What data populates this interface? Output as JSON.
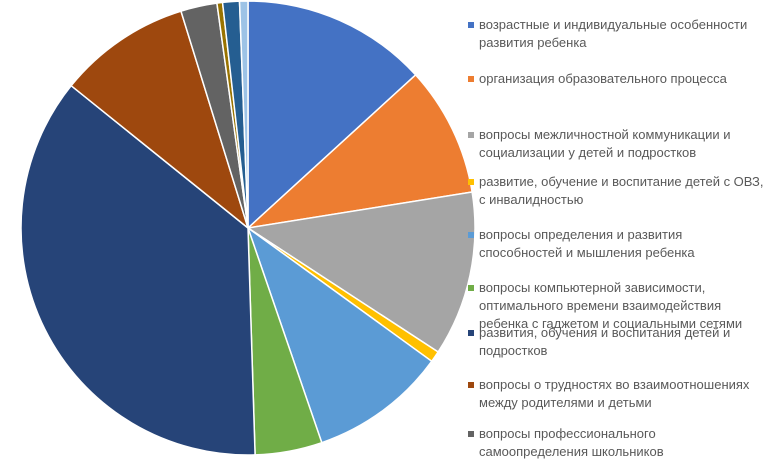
{
  "chart_data": {
    "type": "pie",
    "title": "",
    "start_angle_deg": 0,
    "direction": "clockwise",
    "slices": [
      {
        "label": "возрастные и индивидуальные особенности развития ребенка",
        "value": 13.3,
        "color": "#4472c4",
        "in_legend": true
      },
      {
        "label": "организация образовательного процесса",
        "value": 9.3,
        "color": "#ed7d31",
        "in_legend": true
      },
      {
        "label": "вопросы межличностной коммуникации и социализации у детей и подростков",
        "value": 11.8,
        "color": "#a5a5a5",
        "in_legend": true
      },
      {
        "label": "развитие, обучение и воспитание детей с ОВЗ, с инвалидностью",
        "value": 0.8,
        "color": "#ffc000",
        "in_legend": true
      },
      {
        "label": "вопросы определения и развития способностей и мышления ребенка",
        "value": 9.8,
        "color": "#5b9bd5",
        "in_legend": true
      },
      {
        "label": "вопросы компьютерной зависимости, оптимального времени взаимодействия ребенка с гаджетом и социальными сетями",
        "value": 4.8,
        "color": "#70ad47",
        "in_legend": true
      },
      {
        "label": "развития, обучения и воспитания детей и подростков",
        "value": 36.5,
        "color": "#264478",
        "in_legend": true
      },
      {
        "label": "вопросы о трудностях во взаимоотношениях между родителями и детьми",
        "value": 9.5,
        "color": "#9e480e",
        "in_legend": true
      },
      {
        "label": "вопросы профессионального самоопределения школьников",
        "value": 2.6,
        "color": "#636363",
        "in_legend": true
      },
      {
        "label": "",
        "value": 0.4,
        "color": "#997300",
        "in_legend": false
      },
      {
        "label": "",
        "value": 1.2,
        "color": "#255e91",
        "in_legend": false
      },
      {
        "label": "",
        "value": 0.6,
        "color": "#9dc3e6",
        "in_legend": false
      }
    ],
    "legend_placement": "right"
  }
}
